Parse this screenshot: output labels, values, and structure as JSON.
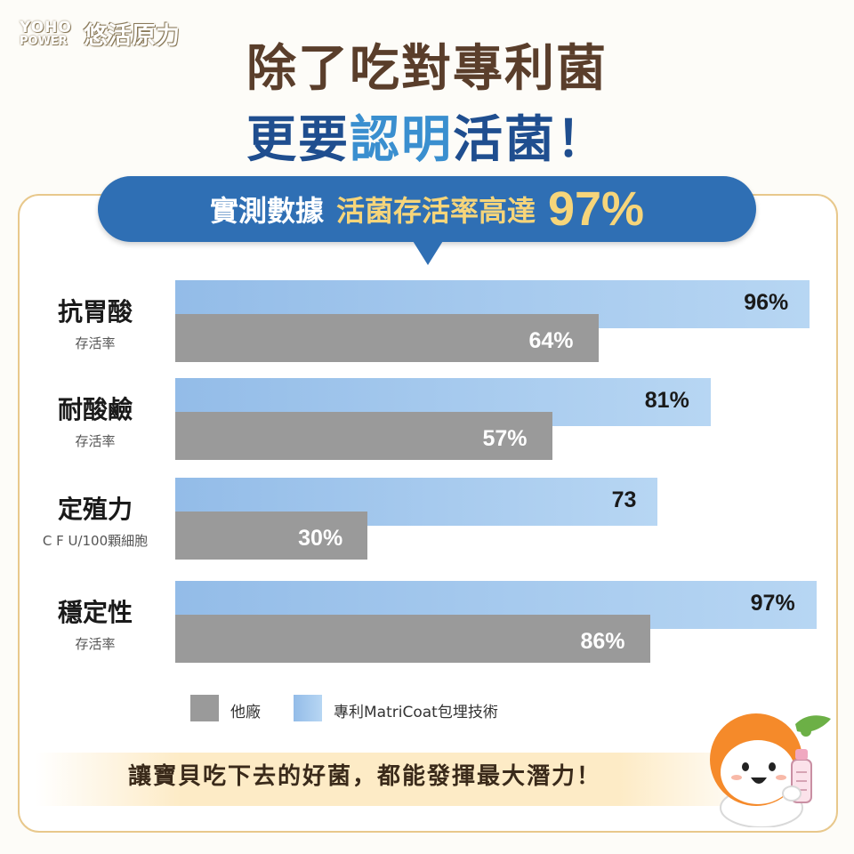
{
  "logo": {
    "line1": "YOHO",
    "line2": "POWER",
    "brand": "悠活原力"
  },
  "headline": {
    "line1": "除了吃對專利菌",
    "line2_part1": "更要",
    "line2_part2": "認明",
    "line2_part3": "活菌！"
  },
  "banner": {
    "prefix": "實測數據",
    "highlight": "活菌存活率高達",
    "percent": "97%"
  },
  "chart_data": {
    "type": "bar",
    "orientation": "horizontal",
    "categories": [
      {
        "label": "抗胃酸",
        "sublabel": "存活率"
      },
      {
        "label": "耐酸鹼",
        "sublabel": "存活率"
      },
      {
        "label": "定殖力",
        "sublabel": "C F U/100顆細胞"
      },
      {
        "label": "穩定性",
        "sublabel": "存活率"
      }
    ],
    "series": [
      {
        "name": "專利MatriCoat包埋技術",
        "values": [
          96,
          81,
          73,
          97
        ],
        "labels": [
          "96%",
          "81%",
          "73",
          "97%"
        ],
        "color": "#a9cdf0"
      },
      {
        "name": "他廠",
        "values": [
          64,
          57,
          30,
          86
        ],
        "labels": [
          "64%",
          "57%",
          "30%",
          "86%"
        ],
        "color": "#9a9a9a"
      }
    ],
    "legend": [
      "他廠",
      "專利MatriCoat包埋技術"
    ],
    "legend_position": "bottom-left"
  },
  "footer": {
    "text": "讓寶貝吃下去的好菌，都能發揮最大潛力！"
  },
  "colors": {
    "title_brown": "#5a3e2b",
    "title_blue": "#1f4e8f",
    "banner_blue": "#2f6fb4",
    "accent_yellow": "#f6d57a",
    "card_border": "#e8c88c"
  }
}
